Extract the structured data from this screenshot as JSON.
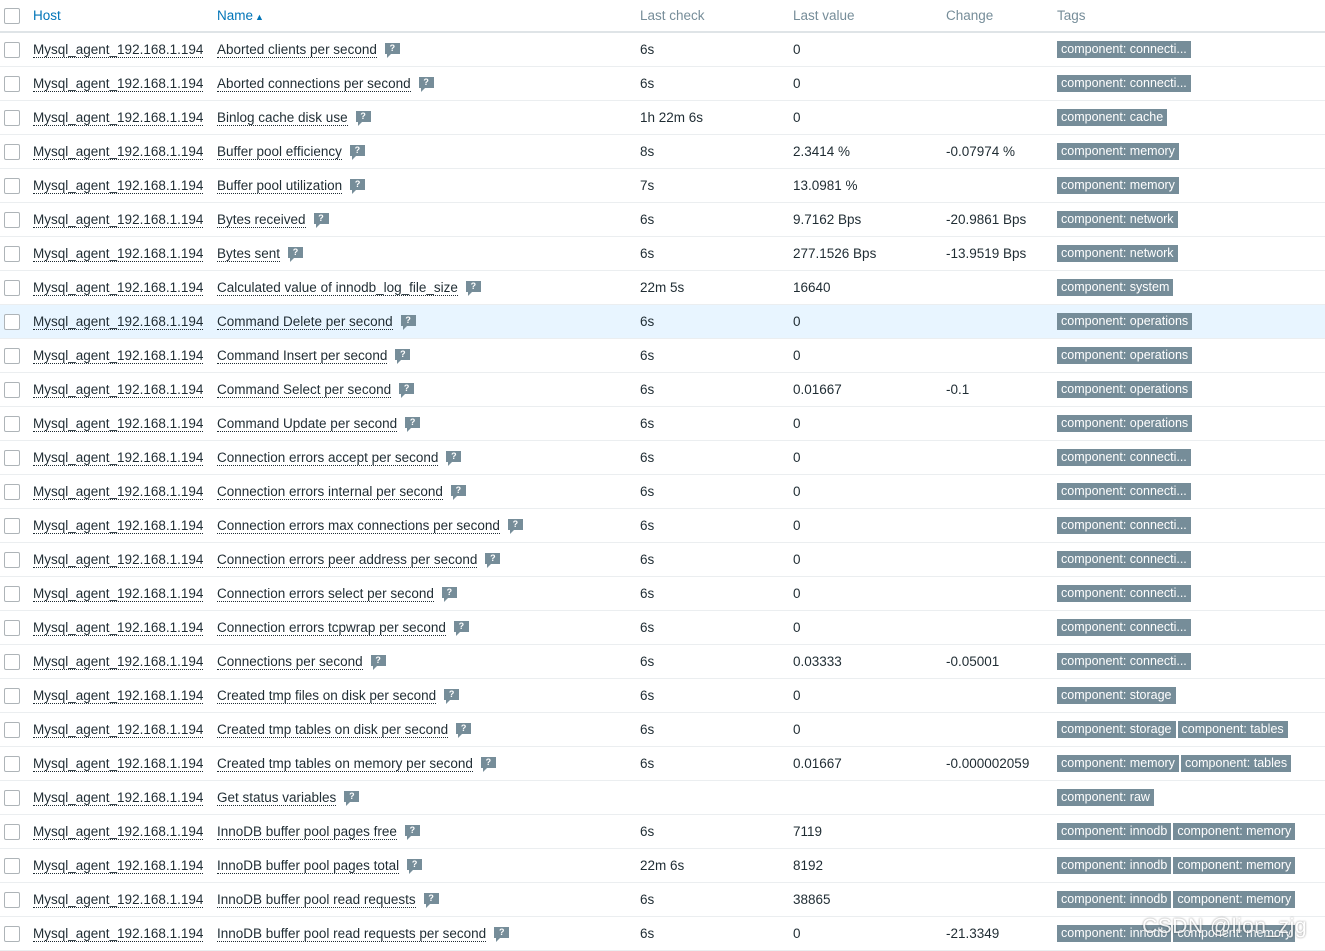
{
  "header": {
    "host": "Host",
    "name": "Name",
    "name_sort_indicator": "▲",
    "last_check": "Last check",
    "last_value": "Last value",
    "change": "Change",
    "tags": "Tags"
  },
  "rows": [
    {
      "host": "Mysql_agent_192.168.1.194",
      "name": "Aborted clients per second",
      "last_check": "6s",
      "last_value": "0",
      "change": "",
      "tags": [
        "component: connecti..."
      ]
    },
    {
      "host": "Mysql_agent_192.168.1.194",
      "name": "Aborted connections per second",
      "last_check": "6s",
      "last_value": "0",
      "change": "",
      "tags": [
        "component: connecti..."
      ]
    },
    {
      "host": "Mysql_agent_192.168.1.194",
      "name": "Binlog cache disk use",
      "last_check": "1h 22m 6s",
      "last_value": "0",
      "change": "",
      "tags": [
        "component: cache"
      ]
    },
    {
      "host": "Mysql_agent_192.168.1.194",
      "name": "Buffer pool efficiency",
      "last_check": "8s",
      "last_value": "2.3414 %",
      "change": "-0.07974 %",
      "tags": [
        "component: memory"
      ]
    },
    {
      "host": "Mysql_agent_192.168.1.194",
      "name": "Buffer pool utilization",
      "last_check": "7s",
      "last_value": "13.0981 %",
      "change": "",
      "tags": [
        "component: memory"
      ]
    },
    {
      "host": "Mysql_agent_192.168.1.194",
      "name": "Bytes received",
      "last_check": "6s",
      "last_value": "9.7162 Bps",
      "change": "-20.9861 Bps",
      "tags": [
        "component: network"
      ]
    },
    {
      "host": "Mysql_agent_192.168.1.194",
      "name": "Bytes sent",
      "last_check": "6s",
      "last_value": "277.1526 Bps",
      "change": "-13.9519 Bps",
      "tags": [
        "component: network"
      ]
    },
    {
      "host": "Mysql_agent_192.168.1.194",
      "name": "Calculated value of innodb_log_file_size",
      "last_check": "22m 5s",
      "last_value": "16640",
      "change": "",
      "tags": [
        "component: system"
      ]
    },
    {
      "host": "Mysql_agent_192.168.1.194",
      "name": "Command Delete per second",
      "last_check": "6s",
      "last_value": "0",
      "change": "",
      "tags": [
        "component: operations"
      ],
      "highlight": true
    },
    {
      "host": "Mysql_agent_192.168.1.194",
      "name": "Command Insert per second",
      "last_check": "6s",
      "last_value": "0",
      "change": "",
      "tags": [
        "component: operations"
      ]
    },
    {
      "host": "Mysql_agent_192.168.1.194",
      "name": "Command Select per second",
      "last_check": "6s",
      "last_value": "0.01667",
      "change": "-0.1",
      "tags": [
        "component: operations"
      ]
    },
    {
      "host": "Mysql_agent_192.168.1.194",
      "name": "Command Update per second",
      "last_check": "6s",
      "last_value": "0",
      "change": "",
      "tags": [
        "component: operations"
      ]
    },
    {
      "host": "Mysql_agent_192.168.1.194",
      "name": "Connection errors accept per second",
      "last_check": "6s",
      "last_value": "0",
      "change": "",
      "tags": [
        "component: connecti..."
      ]
    },
    {
      "host": "Mysql_agent_192.168.1.194",
      "name": "Connection errors internal per second",
      "last_check": "6s",
      "last_value": "0",
      "change": "",
      "tags": [
        "component: connecti..."
      ]
    },
    {
      "host": "Mysql_agent_192.168.1.194",
      "name": "Connection errors max connections per second",
      "last_check": "6s",
      "last_value": "0",
      "change": "",
      "tags": [
        "component: connecti..."
      ]
    },
    {
      "host": "Mysql_agent_192.168.1.194",
      "name": "Connection errors peer address per second",
      "last_check": "6s",
      "last_value": "0",
      "change": "",
      "tags": [
        "component: connecti..."
      ]
    },
    {
      "host": "Mysql_agent_192.168.1.194",
      "name": "Connection errors select per second",
      "last_check": "6s",
      "last_value": "0",
      "change": "",
      "tags": [
        "component: connecti..."
      ]
    },
    {
      "host": "Mysql_agent_192.168.1.194",
      "name": "Connection errors tcpwrap per second",
      "last_check": "6s",
      "last_value": "0",
      "change": "",
      "tags": [
        "component: connecti..."
      ]
    },
    {
      "host": "Mysql_agent_192.168.1.194",
      "name": "Connections per second",
      "last_check": "6s",
      "last_value": "0.03333",
      "change": "-0.05001",
      "tags": [
        "component: connecti..."
      ]
    },
    {
      "host": "Mysql_agent_192.168.1.194",
      "name": "Created tmp files on disk per second",
      "last_check": "6s",
      "last_value": "0",
      "change": "",
      "tags": [
        "component: storage"
      ]
    },
    {
      "host": "Mysql_agent_192.168.1.194",
      "name": "Created tmp tables on disk per second",
      "last_check": "6s",
      "last_value": "0",
      "change": "",
      "tags": [
        "component: storage",
        "component: tables"
      ]
    },
    {
      "host": "Mysql_agent_192.168.1.194",
      "name": "Created tmp tables on memory per second",
      "last_check": "6s",
      "last_value": "0.01667",
      "change": "-0.000002059",
      "tags": [
        "component: memory",
        "component: tables"
      ]
    },
    {
      "host": "Mysql_agent_192.168.1.194",
      "name": "Get status variables",
      "last_check": "",
      "last_value": "",
      "change": "",
      "tags": [
        "component: raw"
      ]
    },
    {
      "host": "Mysql_agent_192.168.1.194",
      "name": "InnoDB buffer pool pages free",
      "last_check": "6s",
      "last_value": "7119",
      "change": "",
      "tags": [
        "component: innodb",
        "component: memory"
      ]
    },
    {
      "host": "Mysql_agent_192.168.1.194",
      "name": "InnoDB buffer pool pages total",
      "last_check": "22m 6s",
      "last_value": "8192",
      "change": "",
      "tags": [
        "component: innodb",
        "component: memory"
      ]
    },
    {
      "host": "Mysql_agent_192.168.1.194",
      "name": "InnoDB buffer pool read requests",
      "last_check": "6s",
      "last_value": "38865",
      "change": "",
      "tags": [
        "component: innodb",
        "component: memory"
      ]
    },
    {
      "host": "Mysql_agent_192.168.1.194",
      "name": "InnoDB buffer pool read requests per second",
      "last_check": "6s",
      "last_value": "0",
      "change": "-21.3349",
      "tags": [
        "component: innodb",
        "component: memory"
      ]
    }
  ],
  "help_glyph": "?",
  "watermark": "CSDN @lion_zjg"
}
